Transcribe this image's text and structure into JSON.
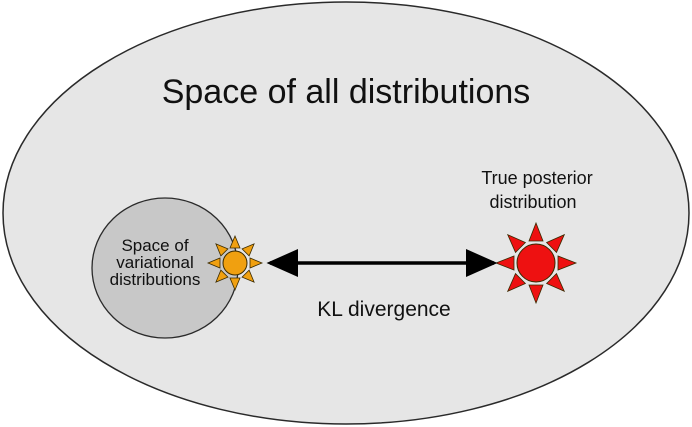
{
  "diagram": {
    "title": "Space of all distributions",
    "variational_space": {
      "line1": "Space of",
      "line2": "variational",
      "line3": "distributions"
    },
    "true_posterior": {
      "line1": "True posterior",
      "line2": "distribution"
    },
    "arrow_label": "KL divergence"
  },
  "colors": {
    "outer_space_fill": "#e6e6e6",
    "variational_space_fill": "#c8c8c8",
    "outline": "#2a2a2a",
    "variational_sun": "#f0a010",
    "true_posterior_sun": "#ee1111",
    "arrow": "#000000"
  },
  "icons": {
    "variational_marker": "sun-icon",
    "true_posterior_marker": "sun-icon"
  }
}
